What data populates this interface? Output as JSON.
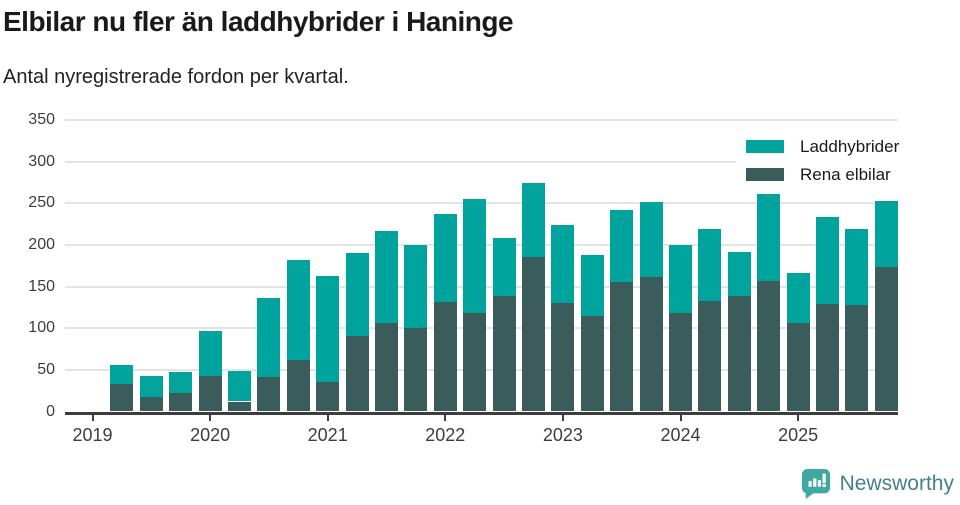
{
  "header": {
    "title": "Elbilar nu fler än laddhybrider i Haninge",
    "subtitle": "Antal nyregistrerade fordon per kvartal."
  },
  "chart_data": {
    "type": "bar",
    "stacked": true,
    "title": "Elbilar nu fler än laddhybrider i Haninge",
    "subtitle": "Antal nyregistrerade fordon per kvartal.",
    "categories": [
      "2019 Q2",
      "2019 Q3",
      "2019 Q4",
      "2020 Q1",
      "2020 Q2",
      "2020 Q3",
      "2020 Q4",
      "2021 Q1",
      "2021 Q2",
      "2021 Q3",
      "2021 Q4",
      "2022 Q1",
      "2022 Q2",
      "2022 Q3",
      "2022 Q4",
      "2023 Q1",
      "2023 Q2",
      "2023 Q3",
      "2023 Q4",
      "2024 Q1",
      "2024 Q2",
      "2024 Q3",
      "2024 Q4",
      "2025 Q1",
      "2025 Q2",
      "2025 Q3",
      "2025 Q4"
    ],
    "series": [
      {
        "name": "Laddhybrider",
        "color": "#00a49c",
        "stack_position": "top",
        "values": [
          23,
          26,
          25,
          54,
          37,
          94,
          120,
          127,
          99,
          111,
          100,
          105,
          137,
          69,
          88,
          94,
          73,
          86,
          90,
          82,
          86,
          52,
          104,
          60,
          104,
          91,
          80
        ]
      },
      {
        "name": "Rena elbilar",
        "color": "#3a5c5a",
        "stack_position": "bottom",
        "values": [
          33,
          17,
          22,
          43,
          12,
          42,
          62,
          36,
          91,
          106,
          100,
          132,
          118,
          139,
          186,
          130,
          115,
          156,
          161,
          118,
          133,
          139,
          157,
          106,
          129,
          128,
          173
        ]
      }
    ],
    "ylim": [
      0,
      350
    ],
    "yticks": [
      0,
      50,
      100,
      150,
      200,
      250,
      300,
      350
    ],
    "year_ticks": [
      "2019",
      "2020",
      "2021",
      "2022",
      "2023",
      "2024",
      "2025"
    ],
    "grid": true,
    "legend_position": "top-right"
  },
  "footer": {
    "brand": "Newsworthy",
    "brand_color": "#45808f",
    "icon": "newsworthy-speech-bubble-chart-icon",
    "icon_color": "#3fa8a0"
  }
}
